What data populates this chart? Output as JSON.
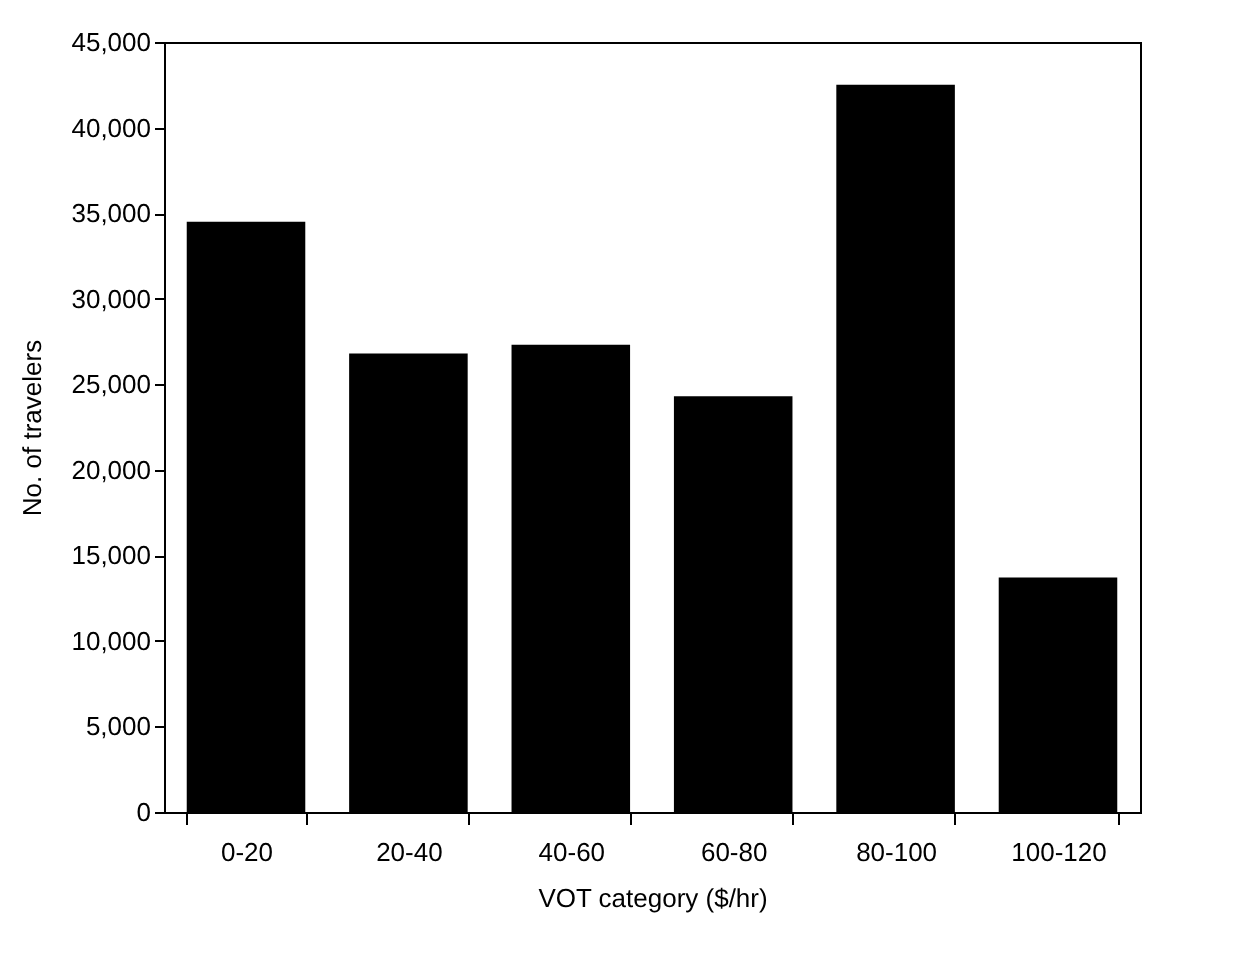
{
  "chart_data": {
    "type": "bar",
    "xlabel": "VOT category ($/hr)",
    "ylabel": "No. of travelers",
    "categories": [
      "0-20",
      "20-40",
      "40-60",
      "60-80",
      "80-100",
      "100-120"
    ],
    "values": [
      34500,
      26800,
      27300,
      24300,
      42500,
      13700
    ],
    "color": "#000000",
    "ylim": [
      0,
      45000
    ],
    "yticks": [
      {
        "value": 0,
        "label": "0"
      },
      {
        "value": 5000,
        "label": "5,000"
      },
      {
        "value": 10000,
        "label": "10,000"
      },
      {
        "value": 15000,
        "label": "15,000"
      },
      {
        "value": 20000,
        "label": "20,000"
      },
      {
        "value": 25000,
        "label": "25,000"
      },
      {
        "value": 30000,
        "label": "30,000"
      },
      {
        "value": 35000,
        "label": "35,000"
      },
      {
        "value": 40000,
        "label": "40,000"
      },
      {
        "value": 45000,
        "label": "45,000"
      }
    ],
    "grid": false
  }
}
